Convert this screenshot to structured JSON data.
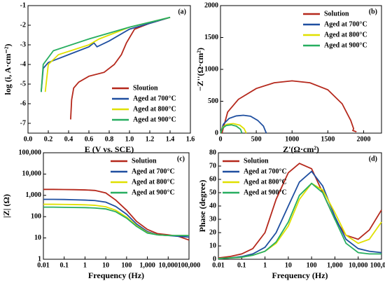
{
  "chart_data": [
    {
      "type": "line",
      "annotation": "(a)",
      "x_label": "E (V vs. SCE)",
      "y_label": "log (i, A·cm⁻²)",
      "xlim": [
        0,
        1.6
      ],
      "xticks": [
        {
          "value": 0,
          "label": "0.0"
        },
        0.2,
        0.4,
        0.6,
        0.8,
        {
          "value": 1,
          "label": "1.0"
        },
        1.2,
        1.4,
        1.6
      ],
      "ylim": [
        -7.5,
        -1
      ],
      "yticks": [
        -7,
        -6,
        -5,
        -4,
        -3,
        -2,
        -1
      ],
      "legend": "lower right",
      "series": [
        {
          "name": "Sloution",
          "color": "#b5281c",
          "x": [
            0.42,
            0.43,
            0.45,
            0.5,
            0.6,
            0.75,
            0.85,
            0.92,
            0.97,
            1.05,
            1.2,
            1.4
          ],
          "values": [
            -6.8,
            -5.8,
            -5.2,
            -4.9,
            -4.6,
            -4.4,
            -4.0,
            -3.5,
            -2.9,
            -2.2,
            -1.9,
            -1.6
          ]
        },
        {
          "name": "Aged at 700°C",
          "color": "#1f4fa0",
          "x": [
            0.13,
            0.15,
            0.2,
            0.4,
            0.6,
            0.65,
            0.68,
            0.8,
            1.0,
            1.2,
            1.4
          ],
          "values": [
            -5.4,
            -4.2,
            -3.9,
            -3.5,
            -3.1,
            -2.9,
            -3.1,
            -2.8,
            -2.2,
            -1.9,
            -1.6
          ]
        },
        {
          "name": "Aged at 800°C",
          "color": "#e0e000",
          "x": [
            0.17,
            0.2,
            0.3,
            0.6,
            0.7,
            1.0,
            1.4
          ],
          "values": [
            -5.4,
            -4.0,
            -3.5,
            -3.0,
            -2.7,
            -2.1,
            -1.6
          ]
        },
        {
          "name": "Aged at 900°C",
          "color": "#27ae60",
          "x": [
            0.13,
            0.15,
            0.25,
            0.6,
            1.0,
            1.4
          ],
          "values": [
            -5.4,
            -4.0,
            -3.3,
            -2.7,
            -2.1,
            -1.6
          ]
        }
      ]
    },
    {
      "type": "line",
      "annotation": "(b)",
      "x_label": "Z'(Ω·cm²)",
      "y_label": "−Z''(Ω·cm²)",
      "xlim": [
        0,
        2250
      ],
      "xticks": [
        0,
        500,
        1000,
        1500,
        2000
      ],
      "ylim": [
        0,
        2000
      ],
      "yticks": [
        0,
        500,
        1000,
        1500,
        2000
      ],
      "legend": "upper right",
      "series": [
        {
          "name": "Solution",
          "color": "#b5281c",
          "x": [
            20,
            100,
            250,
            500,
            750,
            1000,
            1250,
            1500,
            1700,
            1820,
            1860,
            1850,
            1900
          ],
          "values": [
            0,
            330,
            530,
            700,
            790,
            820,
            790,
            680,
            460,
            200,
            70,
            40,
            20
          ]
        },
        {
          "name": "Aged at 700°C",
          "color": "#1f4fa0",
          "x": [
            0,
            40,
            120,
            220,
            320,
            420,
            520,
            600,
            640
          ],
          "values": [
            0,
            140,
            230,
            270,
            280,
            265,
            200,
            110,
            0
          ]
        },
        {
          "name": "Aged at 800°C",
          "color": "#e0e000",
          "x": [
            0,
            30,
            90,
            180,
            270,
            330,
            360
          ],
          "values": [
            0,
            90,
            140,
            150,
            125,
            70,
            0
          ]
        },
        {
          "name": "Aged at 900°C",
          "color": "#27ae60",
          "x": [
            0,
            30,
            80,
            150,
            220,
            280,
            300
          ],
          "values": [
            0,
            80,
            120,
            130,
            110,
            60,
            0
          ]
        }
      ]
    },
    {
      "type": "line",
      "annotation": "(c)",
      "x_label": "Frequency (Hz)",
      "y_label": "|Z| (Ω)",
      "xscale": "log",
      "yscale": "log",
      "xlim": [
        0.01,
        100000
      ],
      "xticks": [
        0.01,
        0.1,
        1,
        10,
        100,
        {
          "value": 1000,
          "label": "1,000"
        },
        {
          "value": 10000,
          "label": "10,000"
        },
        {
          "value": 100000,
          "label": "100,000"
        }
      ],
      "ylim": [
        1,
        100000
      ],
      "yticks": [
        1,
        10,
        100,
        {
          "value": 1000,
          "label": "1,000"
        },
        {
          "value": 10000,
          "label": "10,000"
        },
        {
          "value": 100000,
          "label": "100,000"
        }
      ],
      "legend": "upper right",
      "x": [
        0.01,
        0.03,
        0.1,
        0.3,
        1,
        3,
        10,
        30,
        100,
        300,
        1000,
        3000,
        10000,
        30000,
        100000
      ],
      "series": [
        {
          "name": "Solution",
          "color": "#b5281c",
          "values": [
            1900,
            1900,
            1880,
            1850,
            1800,
            1700,
            1300,
            600,
            200,
            60,
            25,
            16,
            14,
            12,
            8
          ]
        },
        {
          "name": "Aged at 700°C",
          "color": "#1f4fa0",
          "values": [
            650,
            650,
            640,
            620,
            600,
            570,
            480,
            300,
            130,
            45,
            20,
            14,
            13,
            12,
            11
          ]
        },
        {
          "name": "Aged at 800°C",
          "color": "#e0e000",
          "values": [
            380,
            380,
            375,
            370,
            360,
            340,
            290,
            200,
            95,
            38,
            18,
            14,
            13,
            13,
            13
          ]
        },
        {
          "name": "Aged at 900°C",
          "color": "#27ae60",
          "values": [
            280,
            280,
            275,
            270,
            265,
            255,
            230,
            170,
            85,
            35,
            17,
            14,
            13,
            13,
            13
          ]
        }
      ]
    },
    {
      "type": "line",
      "annotation": "(d)",
      "x_label": "Frequency (Hz)",
      "y_label": "Phase (degree)",
      "xscale": "log",
      "xlim": [
        0.01,
        100000
      ],
      "xticks": [
        0.01,
        0.1,
        1,
        10,
        100,
        {
          "value": 1000,
          "label": "1,000"
        },
        {
          "value": 10000,
          "label": "10,000"
        },
        {
          "value": 100000,
          "label": "100,000"
        }
      ],
      "ylim": [
        0,
        80
      ],
      "yticks": [
        0,
        10,
        20,
        30,
        40,
        50,
        60,
        70,
        80
      ],
      "legend": "upper left",
      "x": [
        0.01,
        0.03,
        0.1,
        0.3,
        1,
        3,
        10,
        30,
        100,
        300,
        1000,
        3000,
        10000,
        30000,
        100000
      ],
      "series": [
        {
          "name": "Solution",
          "color": "#b5281c",
          "values": [
            1,
            2,
            4,
            8,
            20,
            45,
            65,
            72,
            68,
            50,
            30,
            18,
            15,
            22,
            37
          ]
        },
        {
          "name": "Aged at 700°C",
          "color": "#1f4fa0",
          "values": [
            0.5,
            1,
            2,
            4,
            9,
            20,
            40,
            58,
            66,
            55,
            32,
            15,
            8,
            6,
            5
          ]
        },
        {
          "name": "Aged at 800°C",
          "color": "#e0e000",
          "values": [
            0.5,
            1,
            1.5,
            3,
            6,
            12,
            25,
            45,
            57,
            52,
            35,
            18,
            12,
            15,
            28
          ]
        },
        {
          "name": "Aged at 900°C",
          "color": "#27ae60",
          "values": [
            0.5,
            1,
            1.5,
            3,
            6,
            13,
            28,
            48,
            57,
            50,
            30,
            12,
            5,
            4,
            4
          ]
        }
      ]
    }
  ]
}
